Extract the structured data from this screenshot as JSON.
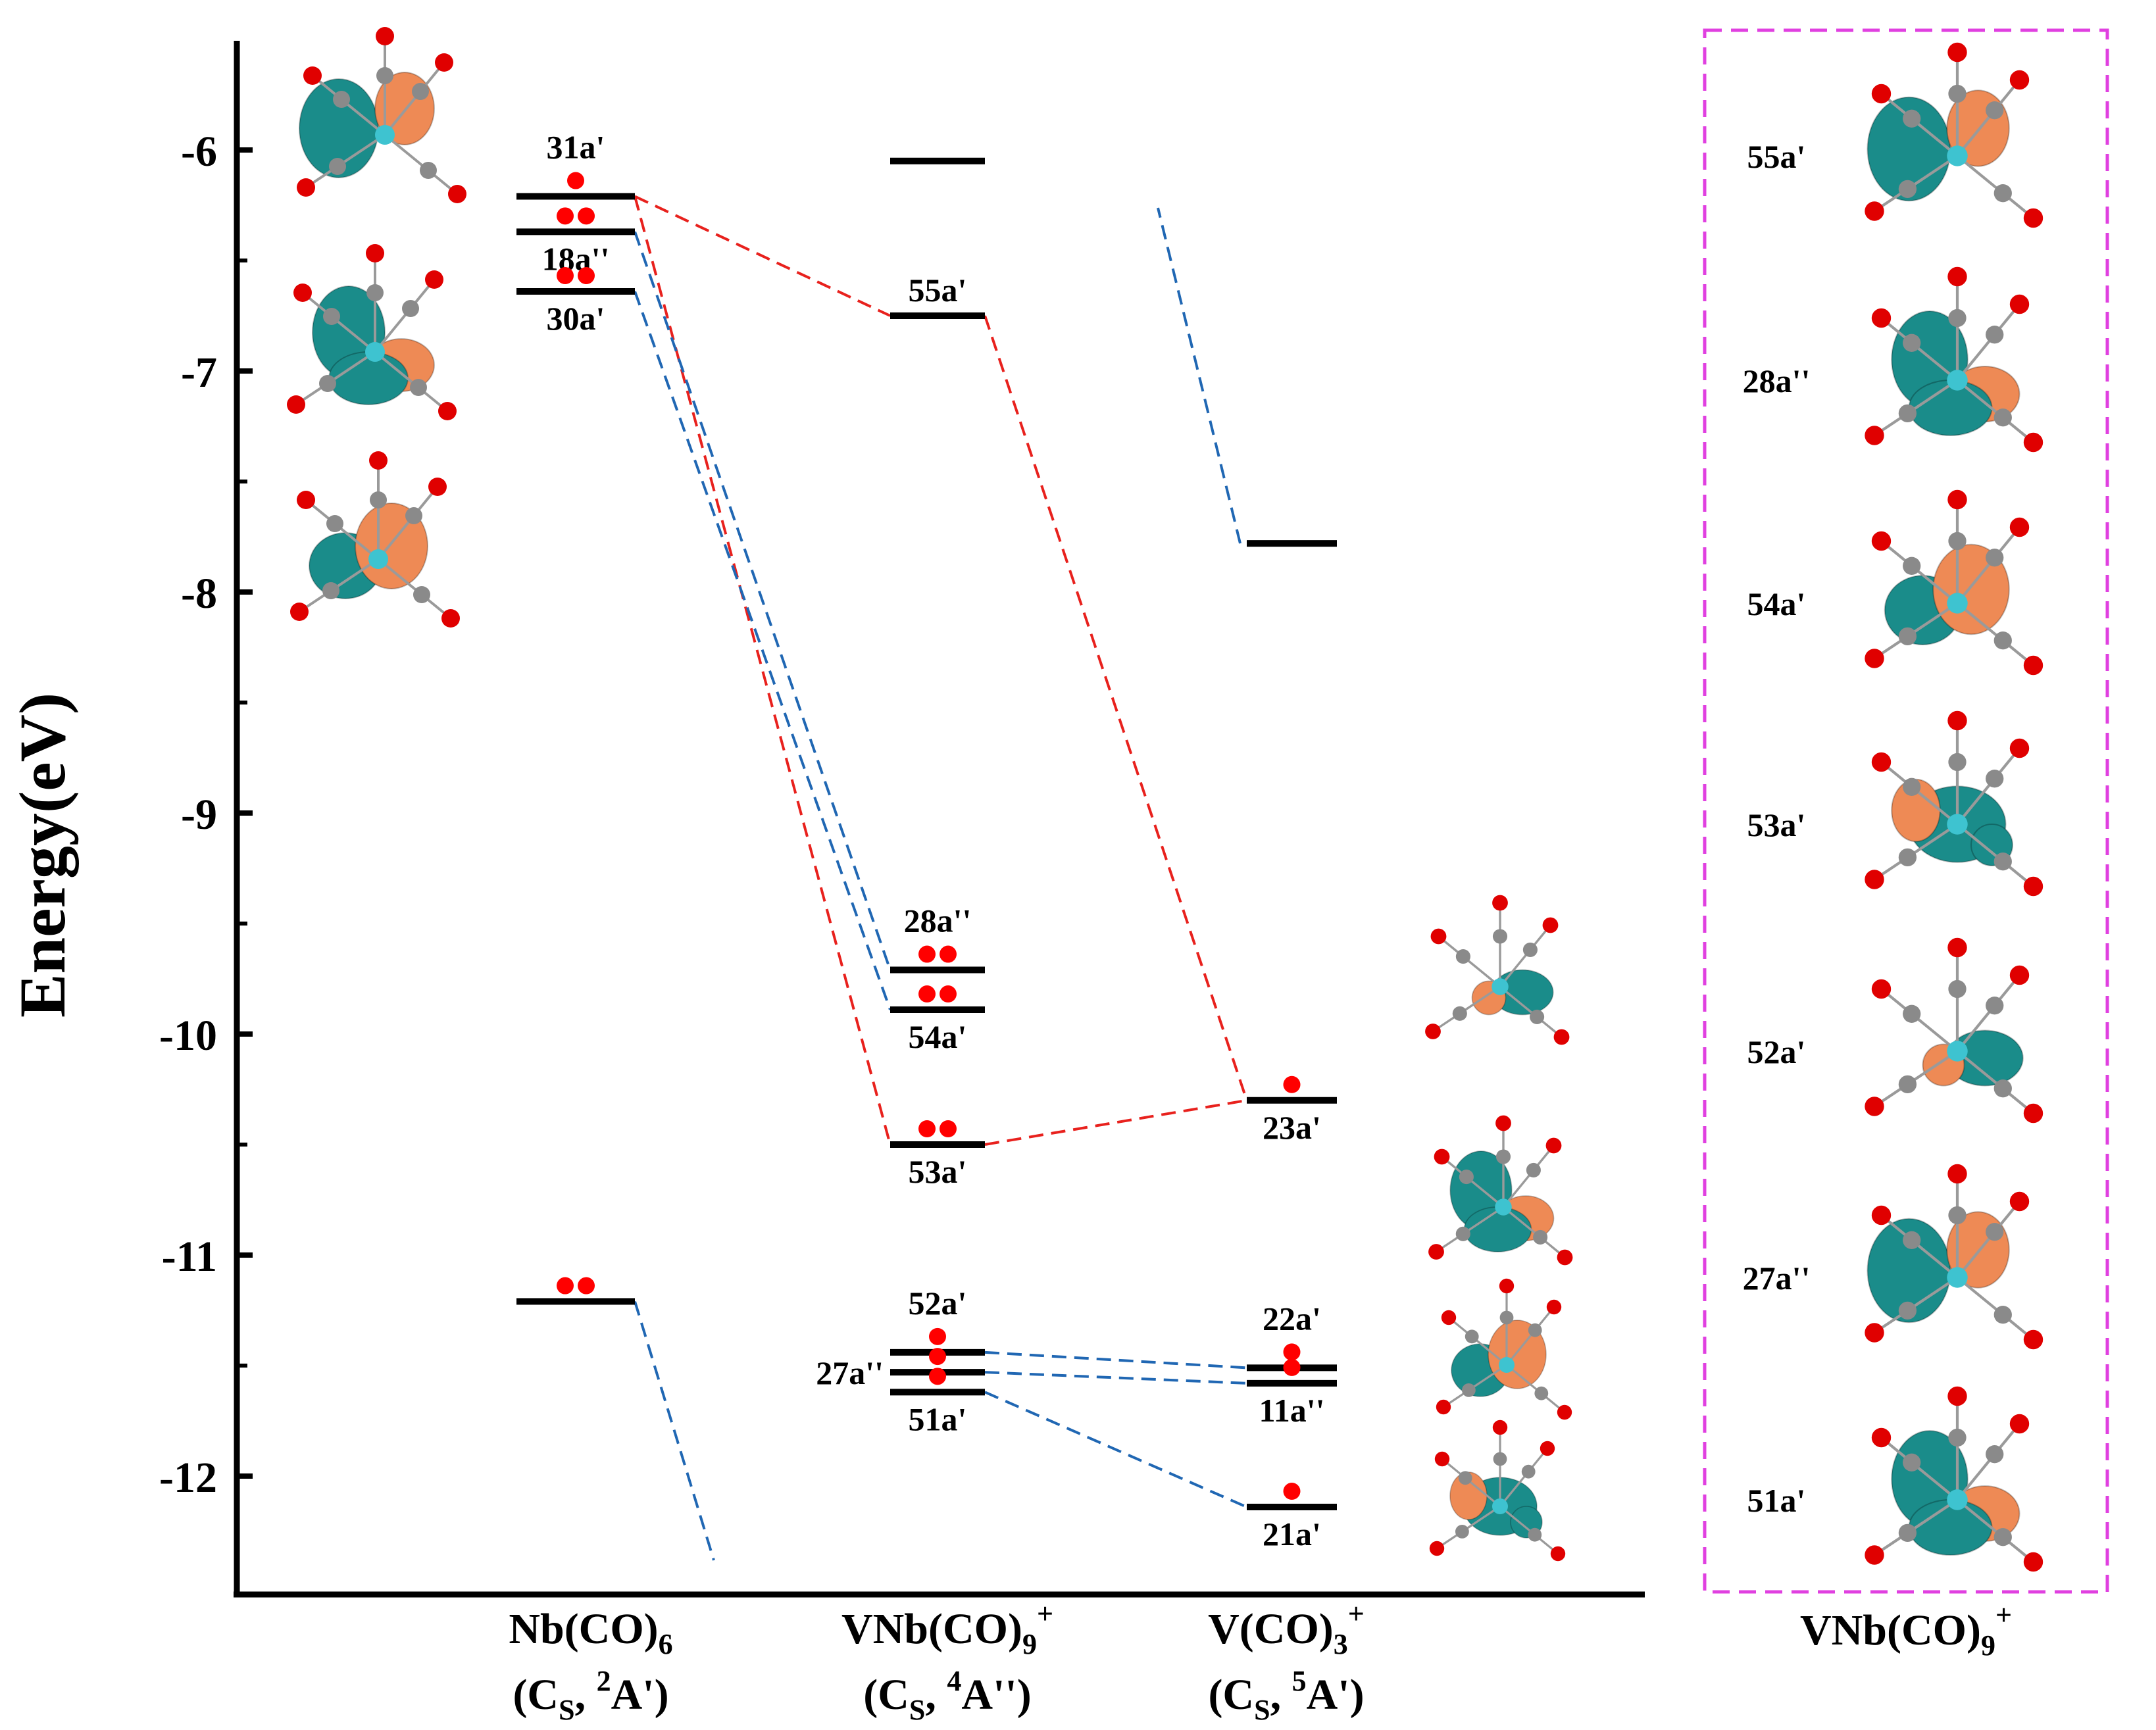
{
  "chart_data": {
    "type": "energy-level-diagram",
    "ylabel": "Energy(eV)",
    "ylim": [
      -12.5,
      -5.5
    ],
    "yticks": [
      -6,
      -7,
      -8,
      -9,
      -10,
      -11,
      -12
    ],
    "yticklabels": [
      "-6",
      "-7",
      "-8",
      "-9",
      "-10",
      "-11",
      "-12"
    ],
    "columns": [
      {
        "key": "nb",
        "name_main": "Nb(CO)",
        "name_sub": "6",
        "name_sup": "",
        "sym_sub": "S",
        "sym_sup": "2",
        "sym_term": "A')"
      },
      {
        "key": "vnb",
        "name_main": "VNb(CO)",
        "name_sub": "9",
        "name_sup": "+",
        "sym_sub": "S",
        "sym_sup": "4",
        "sym_term": "A'')"
      },
      {
        "key": "v",
        "name_main": "V(CO)",
        "name_sub": "3",
        "name_sup": "+",
        "sym_sub": "S",
        "sym_sup": "5",
        "sym_term": "A')"
      }
    ],
    "sym_prefix": "(C",
    "sym_mid": ", ",
    "levels": [
      {
        "id": "nb31",
        "column": "nb",
        "energy": -6.21,
        "label": "31a'",
        "electrons": 1
      },
      {
        "id": "nb18",
        "column": "nb",
        "energy": -6.37,
        "label": "18a''",
        "electrons": 2
      },
      {
        "id": "nb30",
        "column": "nb",
        "energy": -6.64,
        "label": "30a'",
        "electrons": 2
      },
      {
        "id": "nbLow",
        "column": "nb",
        "energy": -11.21,
        "label": "",
        "electrons": 2
      },
      {
        "id": "vnbTop",
        "column": "vnb",
        "energy": -6.05,
        "label": "",
        "electrons": 0
      },
      {
        "id": "vnb55",
        "column": "vnb",
        "energy": -6.75,
        "label": "55a'",
        "electrons": 0
      },
      {
        "id": "vnb28",
        "column": "vnb",
        "energy": -9.71,
        "label": "28a''",
        "electrons": 2
      },
      {
        "id": "vnb54",
        "column": "vnb",
        "energy": -9.89,
        "label": "54a'",
        "electrons": 2
      },
      {
        "id": "vnb53",
        "column": "vnb",
        "energy": -10.5,
        "label": "53a'",
        "electrons": 2
      },
      {
        "id": "vnb52",
        "column": "vnb",
        "energy": -11.44,
        "label": "52a'",
        "electrons": 1
      },
      {
        "id": "vnb27",
        "column": "vnb",
        "energy": -11.53,
        "label": "27a''",
        "electrons": 1
      },
      {
        "id": "vnb51",
        "column": "vnb",
        "energy": -11.62,
        "label": "51a'",
        "electrons": 1
      },
      {
        "id": "v7",
        "column": "v",
        "energy": -7.78,
        "label": "",
        "electrons": 0
      },
      {
        "id": "v23",
        "column": "v",
        "energy": -10.3,
        "label": "23a'",
        "electrons": 1
      },
      {
        "id": "v22",
        "column": "v",
        "energy": -11.51,
        "label": "22a'",
        "electrons": 1
      },
      {
        "id": "v11",
        "column": "v",
        "energy": -11.58,
        "label": "11a''",
        "electrons": 1
      },
      {
        "id": "v21",
        "column": "v",
        "energy": -12.14,
        "label": "21a'",
        "electrons": 1
      }
    ],
    "correlations": [
      {
        "from": "nb31",
        "to": "vnb55",
        "color": "#e8211d"
      },
      {
        "from": "vnb55",
        "to": "v23",
        "color": "#e8211d"
      },
      {
        "from": "nb31",
        "to": "vnb53",
        "color": "#e8211d"
      },
      {
        "from": "vnb53",
        "to": "v23",
        "color": "#e8211d"
      },
      {
        "from": "nb18",
        "to": "vnb28",
        "color": "#2067b3"
      },
      {
        "from": "nb30",
        "to": "vnb54",
        "color": "#2067b3"
      },
      {
        "from": "vnb52",
        "to": "v22",
        "color": "#2067b3"
      },
      {
        "from": "vnb27",
        "to": "v11",
        "color": "#2067b3"
      },
      {
        "from": "vnb51",
        "to": "v21",
        "color": "#2067b3"
      },
      {
        "from": "v7",
        "to": "edge_top",
        "color": "#2067b3"
      },
      {
        "from": "nbLow",
        "to": "edge_bottom",
        "color": "#2067b3"
      }
    ],
    "panel": {
      "title_main": "VNb(CO)",
      "title_sub": "9",
      "title_sup": "+",
      "orbitals": [
        "55a'",
        "28a''",
        "54a'",
        "53a'",
        "52a'",
        "27a''",
        "51a'"
      ]
    },
    "colors": {
      "lobe_positive": "#1a8c8a",
      "lobe_negative": "#ee8a55",
      "oxygen": "#e00000",
      "carbon": "#8a8a8a",
      "vanadium": "#3ec3d0",
      "electron": "#ff0000",
      "panel_border": "#e040e0"
    }
  }
}
